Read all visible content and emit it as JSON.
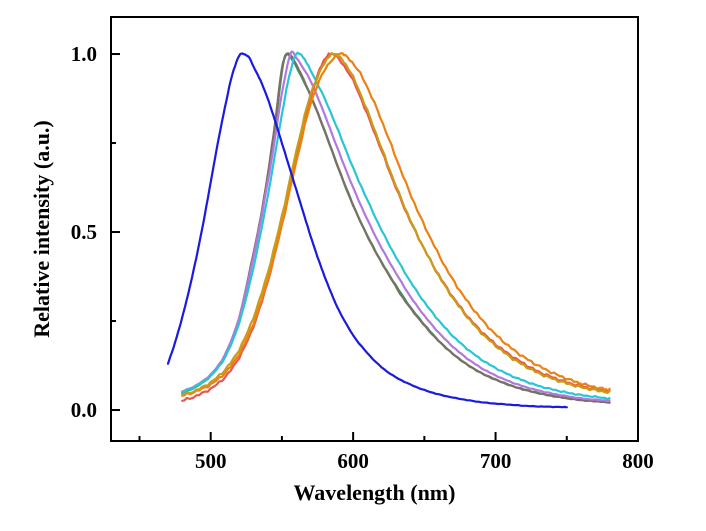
{
  "figure": {
    "background": "#ffffff",
    "axis_color": "#000000",
    "tick_label_fontsize": 21,
    "title_fontsize": 22
  },
  "chart_data": {
    "type": "line",
    "title": "",
    "xlabel": "Wavelength (nm)",
    "ylabel": "Relative intensity (a.u.)",
    "xlim": [
      430,
      800
    ],
    "ylim": [
      -0.087,
      1.104
    ],
    "x_major_ticks": [
      500,
      600,
      700,
      800
    ],
    "x_minor_ticks": [
      450,
      550,
      650,
      750
    ],
    "x_tick_labels": [
      "500",
      "600",
      "700",
      "800"
    ],
    "y_major_ticks": [
      0.0,
      0.5,
      1.0
    ],
    "y_minor_ticks": [
      0.25,
      0.75
    ],
    "y_tick_labels": [
      "0.0",
      "0.5",
      "1.0"
    ],
    "grid": false,
    "legend": "none",
    "series": [
      {
        "name": "green-spectrum",
        "color": "#2e9e60",
        "peak_nm": 553,
        "noise": 0.3,
        "points": [
          [
            480,
            0.048
          ],
          [
            490,
            0.066
          ],
          [
            500,
            0.096
          ],
          [
            510,
            0.15
          ],
          [
            520,
            0.255
          ],
          [
            530,
            0.43
          ],
          [
            535,
            0.53
          ],
          [
            540,
            0.65
          ],
          [
            545,
            0.79
          ],
          [
            550,
            0.95
          ],
          [
            553,
            1.0
          ],
          [
            557,
            0.985
          ],
          [
            560,
            0.965
          ],
          [
            570,
            0.885
          ],
          [
            580,
            0.785
          ],
          [
            590,
            0.675
          ],
          [
            600,
            0.575
          ],
          [
            610,
            0.49
          ],
          [
            620,
            0.415
          ],
          [
            630,
            0.35
          ],
          [
            640,
            0.29
          ],
          [
            650,
            0.24
          ],
          [
            660,
            0.195
          ],
          [
            670,
            0.158
          ],
          [
            680,
            0.128
          ],
          [
            690,
            0.104
          ],
          [
            700,
            0.086
          ],
          [
            710,
            0.07
          ],
          [
            720,
            0.058
          ],
          [
            730,
            0.048
          ],
          [
            740,
            0.04
          ],
          [
            750,
            0.034
          ],
          [
            760,
            0.029
          ],
          [
            770,
            0.025
          ],
          [
            780,
            0.022
          ]
        ]
      },
      {
        "name": "gray-spectrum",
        "color": "#7b6f66",
        "peak_nm": 554,
        "noise": 0.3,
        "points": [
          [
            480,
            0.05
          ],
          [
            490,
            0.068
          ],
          [
            500,
            0.098
          ],
          [
            510,
            0.155
          ],
          [
            520,
            0.26
          ],
          [
            530,
            0.44
          ],
          [
            535,
            0.54
          ],
          [
            540,
            0.66
          ],
          [
            545,
            0.8
          ],
          [
            550,
            0.96
          ],
          [
            554,
            1.0
          ],
          [
            558,
            0.985
          ],
          [
            565,
            0.93
          ],
          [
            575,
            0.835
          ],
          [
            585,
            0.73
          ],
          [
            595,
            0.625
          ],
          [
            605,
            0.53
          ],
          [
            615,
            0.45
          ],
          [
            625,
            0.38
          ],
          [
            635,
            0.315
          ],
          [
            645,
            0.262
          ],
          [
            655,
            0.215
          ],
          [
            665,
            0.175
          ],
          [
            675,
            0.142
          ],
          [
            685,
            0.115
          ],
          [
            695,
            0.094
          ],
          [
            705,
            0.077
          ],
          [
            715,
            0.063
          ],
          [
            725,
            0.052
          ],
          [
            735,
            0.043
          ],
          [
            745,
            0.036
          ],
          [
            755,
            0.03
          ],
          [
            765,
            0.026
          ],
          [
            775,
            0.023
          ],
          [
            780,
            0.021
          ]
        ]
      },
      {
        "name": "purple-spectrum",
        "color": "#b377dd",
        "peak_nm": 556,
        "noise": 0.3,
        "points": [
          [
            480,
            0.052
          ],
          [
            490,
            0.07
          ],
          [
            500,
            0.1
          ],
          [
            510,
            0.155
          ],
          [
            520,
            0.26
          ],
          [
            530,
            0.43
          ],
          [
            540,
            0.64
          ],
          [
            545,
            0.76
          ],
          [
            550,
            0.89
          ],
          [
            556,
            1.0
          ],
          [
            560,
            0.99
          ],
          [
            570,
            0.925
          ],
          [
            580,
            0.83
          ],
          [
            590,
            0.725
          ],
          [
            600,
            0.625
          ],
          [
            610,
            0.535
          ],
          [
            620,
            0.455
          ],
          [
            630,
            0.385
          ],
          [
            640,
            0.32
          ],
          [
            650,
            0.265
          ],
          [
            660,
            0.218
          ],
          [
            670,
            0.178
          ],
          [
            680,
            0.145
          ],
          [
            690,
            0.118
          ],
          [
            700,
            0.097
          ],
          [
            710,
            0.08
          ],
          [
            720,
            0.066
          ],
          [
            730,
            0.055
          ],
          [
            740,
            0.046
          ],
          [
            750,
            0.039
          ],
          [
            760,
            0.033
          ],
          [
            770,
            0.029
          ],
          [
            780,
            0.026
          ]
        ]
      },
      {
        "name": "cyan-spectrum",
        "color": "#26c6d5",
        "peak_nm": 560,
        "noise": 0.5,
        "points": [
          [
            480,
            0.05
          ],
          [
            490,
            0.068
          ],
          [
            500,
            0.096
          ],
          [
            510,
            0.148
          ],
          [
            520,
            0.245
          ],
          [
            530,
            0.4
          ],
          [
            540,
            0.6
          ],
          [
            550,
            0.83
          ],
          [
            555,
            0.935
          ],
          [
            560,
            1.0
          ],
          [
            565,
            0.99
          ],
          [
            570,
            0.955
          ],
          [
            580,
            0.875
          ],
          [
            590,
            0.78
          ],
          [
            600,
            0.68
          ],
          [
            610,
            0.59
          ],
          [
            620,
            0.505
          ],
          [
            630,
            0.43
          ],
          [
            640,
            0.362
          ],
          [
            650,
            0.303
          ],
          [
            660,
            0.252
          ],
          [
            670,
            0.208
          ],
          [
            680,
            0.172
          ],
          [
            690,
            0.142
          ],
          [
            700,
            0.118
          ],
          [
            710,
            0.098
          ],
          [
            720,
            0.082
          ],
          [
            730,
            0.068
          ],
          [
            740,
            0.058
          ],
          [
            750,
            0.049
          ],
          [
            760,
            0.042
          ],
          [
            770,
            0.037
          ],
          [
            780,
            0.032
          ]
        ]
      },
      {
        "name": "red-spectrum",
        "color": "#ef5350",
        "peak_nm": 584,
        "noise": 0.9,
        "points": [
          [
            480,
            0.026
          ],
          [
            490,
            0.04
          ],
          [
            500,
            0.06
          ],
          [
            510,
            0.092
          ],
          [
            520,
            0.148
          ],
          [
            530,
            0.235
          ],
          [
            540,
            0.36
          ],
          [
            550,
            0.52
          ],
          [
            560,
            0.705
          ],
          [
            570,
            0.875
          ],
          [
            578,
            0.97
          ],
          [
            584,
            1.0
          ],
          [
            590,
            0.985
          ],
          [
            600,
            0.925
          ],
          [
            610,
            0.83
          ],
          [
            620,
            0.728
          ],
          [
            630,
            0.625
          ],
          [
            640,
            0.532
          ],
          [
            650,
            0.452
          ],
          [
            660,
            0.38
          ],
          [
            670,
            0.318
          ],
          [
            680,
            0.265
          ],
          [
            690,
            0.221
          ],
          [
            700,
            0.185
          ],
          [
            710,
            0.155
          ],
          [
            720,
            0.13
          ],
          [
            730,
            0.108
          ],
          [
            740,
            0.092
          ],
          [
            750,
            0.078
          ],
          [
            760,
            0.067
          ],
          [
            770,
            0.058
          ],
          [
            780,
            0.052
          ]
        ]
      },
      {
        "name": "orange-spectrum",
        "color": "#ee8012",
        "peak_nm": 590,
        "noise": 0.9,
        "points": [
          [
            480,
            0.04
          ],
          [
            490,
            0.053
          ],
          [
            500,
            0.072
          ],
          [
            510,
            0.104
          ],
          [
            520,
            0.158
          ],
          [
            530,
            0.243
          ],
          [
            540,
            0.365
          ],
          [
            550,
            0.52
          ],
          [
            560,
            0.695
          ],
          [
            570,
            0.858
          ],
          [
            580,
            0.955
          ],
          [
            590,
            1.0
          ],
          [
            596,
            0.99
          ],
          [
            605,
            0.945
          ],
          [
            615,
            0.862
          ],
          [
            625,
            0.762
          ],
          [
            635,
            0.658
          ],
          [
            645,
            0.562
          ],
          [
            655,
            0.477
          ],
          [
            665,
            0.4
          ],
          [
            675,
            0.335
          ],
          [
            685,
            0.28
          ],
          [
            695,
            0.233
          ],
          [
            705,
            0.194
          ],
          [
            715,
            0.162
          ],
          [
            725,
            0.136
          ],
          [
            735,
            0.114
          ],
          [
            745,
            0.096
          ],
          [
            755,
            0.081
          ],
          [
            765,
            0.069
          ],
          [
            775,
            0.06
          ],
          [
            780,
            0.056
          ]
        ]
      },
      {
        "name": "dark-yellow-spectrum",
        "color": "#c79c16",
        "peak_nm": 586,
        "noise": 0.9,
        "points": [
          [
            480,
            0.042
          ],
          [
            490,
            0.056
          ],
          [
            500,
            0.078
          ],
          [
            510,
            0.113
          ],
          [
            520,
            0.17
          ],
          [
            530,
            0.26
          ],
          [
            540,
            0.385
          ],
          [
            550,
            0.545
          ],
          [
            560,
            0.725
          ],
          [
            570,
            0.885
          ],
          [
            580,
            0.975
          ],
          [
            586,
            1.0
          ],
          [
            592,
            0.985
          ],
          [
            600,
            0.935
          ],
          [
            610,
            0.84
          ],
          [
            620,
            0.735
          ],
          [
            630,
            0.63
          ],
          [
            640,
            0.535
          ],
          [
            650,
            0.452
          ],
          [
            660,
            0.378
          ],
          [
            670,
            0.315
          ],
          [
            680,
            0.262
          ],
          [
            690,
            0.217
          ],
          [
            700,
            0.181
          ],
          [
            710,
            0.15
          ],
          [
            720,
            0.125
          ],
          [
            730,
            0.104
          ],
          [
            740,
            0.088
          ],
          [
            750,
            0.075
          ],
          [
            760,
            0.064
          ],
          [
            770,
            0.056
          ],
          [
            780,
            0.049
          ]
        ]
      },
      {
        "name": "blue-spectrum",
        "color": "#1a1ae0",
        "peak_nm": 523,
        "noise": 0.2,
        "points": [
          [
            470,
            0.13
          ],
          [
            475,
            0.19
          ],
          [
            480,
            0.26
          ],
          [
            485,
            0.34
          ],
          [
            490,
            0.43
          ],
          [
            495,
            0.53
          ],
          [
            500,
            0.64
          ],
          [
            505,
            0.75
          ],
          [
            510,
            0.85
          ],
          [
            515,
            0.94
          ],
          [
            520,
            0.995
          ],
          [
            523,
            1.0
          ],
          [
            527,
            0.99
          ],
          [
            530,
            0.965
          ],
          [
            535,
            0.925
          ],
          [
            540,
            0.875
          ],
          [
            545,
            0.815
          ],
          [
            550,
            0.75
          ],
          [
            555,
            0.685
          ],
          [
            560,
            0.62
          ],
          [
            565,
            0.555
          ],
          [
            570,
            0.49
          ],
          [
            575,
            0.43
          ],
          [
            580,
            0.375
          ],
          [
            585,
            0.325
          ],
          [
            590,
            0.28
          ],
          [
            600,
            0.21
          ],
          [
            610,
            0.16
          ],
          [
            620,
            0.12
          ],
          [
            630,
            0.092
          ],
          [
            640,
            0.072
          ],
          [
            650,
            0.056
          ],
          [
            660,
            0.044
          ],
          [
            670,
            0.035
          ],
          [
            680,
            0.028
          ],
          [
            690,
            0.022
          ],
          [
            700,
            0.018
          ],
          [
            710,
            0.015
          ],
          [
            720,
            0.012
          ],
          [
            730,
            0.01
          ],
          [
            740,
            0.009
          ],
          [
            750,
            0.008
          ]
        ]
      }
    ]
  }
}
